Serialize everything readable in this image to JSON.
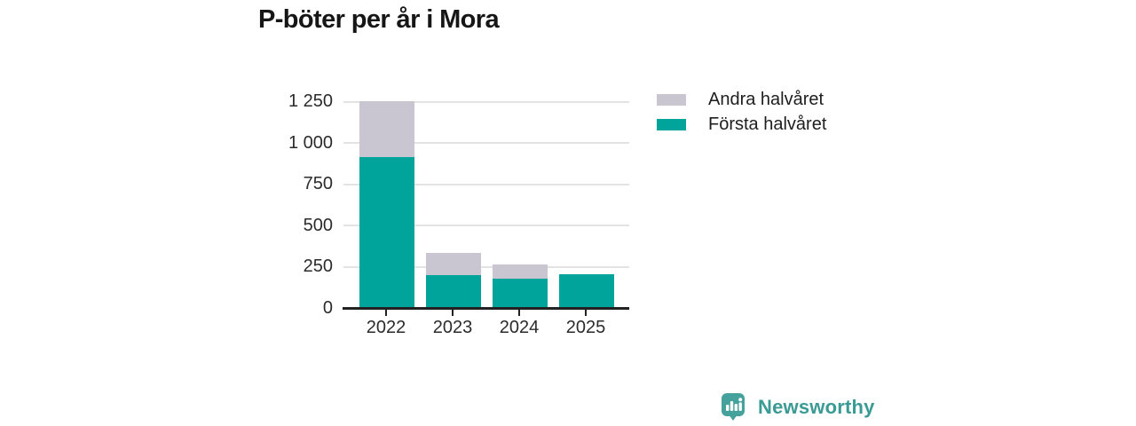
{
  "title": "P-böter per år i Mora",
  "legend": {
    "items": [
      {
        "label": "Andra halvåret",
        "color": "#c9c6d1"
      },
      {
        "label": "Första halvåret",
        "color": "#00a49a"
      }
    ]
  },
  "chart_data": {
    "type": "bar",
    "stacked": true,
    "title": "P-böter per år i Mora",
    "categories": [
      "2022",
      "2023",
      "2024",
      "2025"
    ],
    "series": [
      {
        "name": "Första halvåret",
        "color": "#00a49a",
        "values": [
          910,
          195,
          175,
          200
        ]
      },
      {
        "name": "Andra halvåret",
        "color": "#c9c6d1",
        "values": [
          340,
          135,
          85,
          0
        ]
      }
    ],
    "xlabel": "",
    "ylabel": "",
    "ylim": [
      0,
      1250
    ],
    "ytick_interval": 250,
    "ytick_labels": [
      "0",
      "250",
      "500",
      "750",
      "1 000",
      "1 250"
    ],
    "grid": "horizontal",
    "legend_position": "top-right"
  },
  "footer": {
    "brand": "Newsworthy",
    "brand_color": "#3a9a94",
    "icon_color": "#44a19b"
  }
}
